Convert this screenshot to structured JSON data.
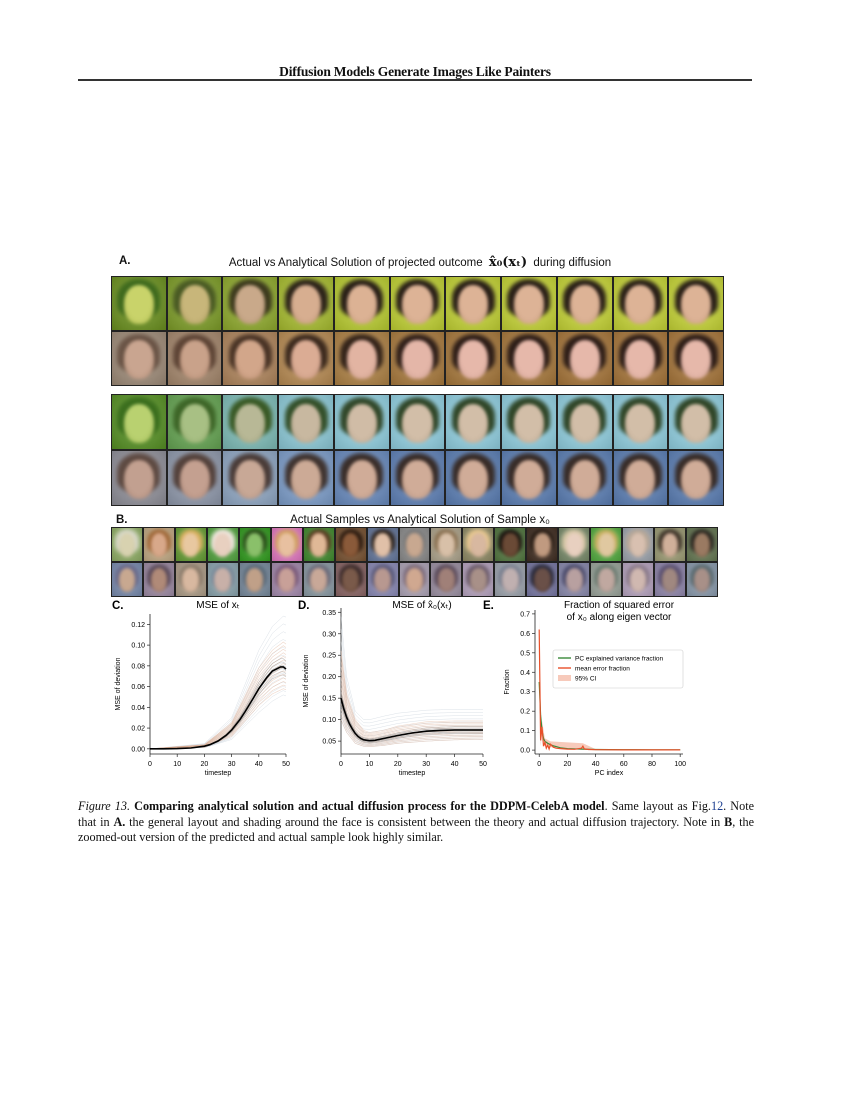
{
  "page": {
    "running_head": "Diffusion Models Generate Images Like Painters"
  },
  "panel_a": {
    "letter": "A.",
    "title_prefix": "Actual vs Analytical Solution of projected outcome",
    "title_math": "x̂₀(xₜ)",
    "title_suffix": "during diffusion",
    "columns": 11,
    "groups": [
      {
        "name": "male-sample",
        "rows": [
          {
            "label": "actual",
            "bg": [
              "#6f8f2e",
              "#7f9a36",
              "#8ea53a",
              "#a3b53c",
              "#b2c23d",
              "#b8c63f",
              "#bac740",
              "#bcc841",
              "#bdc942",
              "#bdc942",
              "#bdc942"
            ],
            "face": [
              "#c9d36a",
              "#c8b67a",
              "#c9a98a",
              "#d7ae90",
              "#dcb294",
              "#ddb396",
              "#ddb396",
              "#ddb396",
              "#ddb396",
              "#ddb396",
              "#ddb396"
            ],
            "hair": [
              "#3f6a1e",
              "#4a5a24",
              "#3d3a1e",
              "#2d241a",
              "#2a2018",
              "#2a2018",
              "#2a2018",
              "#2a2018",
              "#2a2018",
              "#2a2018",
              "#2a2018"
            ]
          },
          {
            "label": "analytical",
            "bg": [
              "#9a8a7a",
              "#a08770",
              "#a98562",
              "#b08a5a",
              "#a8824e",
              "#a47c48",
              "#a27a46",
              "#a27a46",
              "#a27845",
              "#a27845",
              "#a27845"
            ],
            "face": [
              "#c9a590",
              "#c9a28a",
              "#d2a68a",
              "#dbac94",
              "#e2b4a2",
              "#e4b6a8",
              "#e6b8aa",
              "#e6b8aa",
              "#e6b8aa",
              "#e6b8aa",
              "#e6b8aa"
            ],
            "hair": [
              "#6a5446",
              "#5e4536",
              "#4a3426",
              "#3c2a1e",
              "#34241a",
              "#30201a",
              "#2e1e18",
              "#2e1e18",
              "#2e1e18",
              "#2e1e18",
              "#2e1e18"
            ]
          }
        ]
      },
      {
        "name": "female-sample",
        "rows": [
          {
            "label": "actual",
            "bg": [
              "#5d8f32",
              "#6aa05a",
              "#7fb4b0",
              "#8cc0cc",
              "#8fc4d2",
              "#90c5d4",
              "#90c5d4",
              "#90c5d4",
              "#90c5d4",
              "#90c5d4",
              "#90c5d4"
            ],
            "face": [
              "#b9d170",
              "#a8c084",
              "#b8b896",
              "#c8b8a0",
              "#d0bca6",
              "#d2bea8",
              "#d2bea8",
              "#d2bea8",
              "#d2bea8",
              "#d2bea8",
              "#d2bea8"
            ],
            "hair": [
              "#3b6e1e",
              "#3e6628",
              "#3a5a26",
              "#34502a",
              "#32482a",
              "#304628",
              "#304628",
              "#304628",
              "#304628",
              "#304628",
              "#304628"
            ]
          },
          {
            "label": "analytical",
            "bg": [
              "#8e8e96",
              "#8e96a6",
              "#8ea2ba",
              "#7e9ac0",
              "#6d8ab6",
              "#6582b0",
              "#6280ae",
              "#6280ae",
              "#6280ae",
              "#6280ae",
              "#6280ae"
            ],
            "face": [
              "#c2a090",
              "#c4a090",
              "#c8a896",
              "#ccaa96",
              "#d0ac98",
              "#d0ac98",
              "#d0ac98",
              "#d0ac98",
              "#d0ac98",
              "#d0ac98",
              "#d0ac98"
            ],
            "hair": [
              "#5e4a42",
              "#54423c",
              "#4a3c38",
              "#403430",
              "#3a2e2a",
              "#382c28",
              "#382c28",
              "#382c28",
              "#382c28",
              "#382c28",
              "#382c28"
            ]
          }
        ]
      }
    ]
  },
  "panel_b": {
    "letter": "B.",
    "title": "Actual Samples vs Analytical Solution of Sample x₀",
    "columns": 19,
    "actual": {
      "bg": [
        "#8ea86a",
        "#b8a484",
        "#6a9a40",
        "#5aa04a",
        "#3e9a2e",
        "#d47ab8",
        "#4a8a3a",
        "#7a5a3e",
        "#6a7a9a",
        "#8a8a8a",
        "#a8a08c",
        "#8e8a6a",
        "#5a7a4a",
        "#4a3a30",
        "#7a8a6e",
        "#5aa64a",
        "#9aa0a8",
        "#9a9a78",
        "#6a7a5a"
      ],
      "face": [
        "#d8d2b0",
        "#d8a88a",
        "#e8c8a0",
        "#e8d0c0",
        "#8ac06a",
        "#e8c0a0",
        "#e0b896",
        "#8a5a3a",
        "#e0c0a8",
        "#c8a890",
        "#d8c0a8",
        "#d8b8a0",
        "#6a4a36",
        "#c09a80",
        "#e8d0c0",
        "#e0c8a0",
        "#d8c0b0",
        "#d0b09a",
        "#9a7a62"
      ],
      "hair": [
        "#d8d8c8",
        "#a06838",
        "#d8b060",
        "#f0e8e0",
        "#2a4a1a",
        "#d0a060",
        "#5a3a22",
        "#2a1a10",
        "#2a2018",
        "#7a7a7a",
        "#8a7050",
        "#e8c890",
        "#1a1410",
        "#2a1e16",
        "#d8c8a8",
        "#c8b060",
        "#b8a898",
        "#3a3026",
        "#2a2620"
      ]
    },
    "analytical": {
      "bg": [
        "#7a8aa8",
        "#9a8aa0",
        "#a89a88",
        "#8aa0a8",
        "#7a8a9a",
        "#a08aa8",
        "#8a98a0",
        "#8a6a6a",
        "#8a8ab0",
        "#a8a0b0",
        "#9a90a0",
        "#b0a0b8",
        "#9aa0a8",
        "#7a7aa0",
        "#8a8aa8",
        "#98a098",
        "#b0a0b8",
        "#9088a8",
        "#8a98a8"
      ],
      "face": [
        "#c8a890",
        "#b08a78",
        "#d8b8a0",
        "#c8b0a8",
        "#c0a088",
        "#c8a098",
        "#c8a898",
        "#7a5a4a",
        "#b89890",
        "#d0a890",
        "#a08078",
        "#a89088",
        "#c0b0b0",
        "#6a5048",
        "#b8a0a0",
        "#c0a8a0",
        "#d0b8b0",
        "#a08880",
        "#a89088"
      ],
      "hair": [
        "#6a6a8a",
        "#5a4a5a",
        "#8a7a6a",
        "#7a8a9a",
        "#5a6a7a",
        "#7a5a7a",
        "#6a6a7a",
        "#3a2a2a",
        "#5a5a7a",
        "#7a6a7a",
        "#5a4a5a",
        "#6a5a6a",
        "#7a8090",
        "#2a2a3a",
        "#4a4a6a",
        "#6a7a70",
        "#8a7a8a",
        "#5a5070",
        "#5a6a70"
      ]
    }
  },
  "chart_data": [
    {
      "panel": "C.",
      "type": "line",
      "title": "MSE of xₜ",
      "xlabel": "timestep",
      "ylabel": "MSE of deviation",
      "xlim": [
        0,
        50
      ],
      "ylim": [
        -0.005,
        0.13
      ],
      "xticks": [
        0,
        10,
        20,
        30,
        40,
        50
      ],
      "yticks": [
        0.0,
        0.02,
        0.04,
        0.06,
        0.08,
        0.1,
        0.12
      ],
      "ytick_labels": [
        "0.00",
        "0.02",
        "0.04",
        "0.06",
        "0.08",
        "0.10",
        "0.12"
      ],
      "grid": false,
      "series": [
        {
          "name": "mean",
          "color": "#000000",
          "x": [
            0,
            5,
            10,
            15,
            20,
            22,
            25,
            28,
            30,
            33,
            35,
            38,
            40,
            43,
            45,
            48,
            49,
            50
          ],
          "y": [
            0,
            0,
            0.0002,
            0.0008,
            0.0025,
            0.004,
            0.0075,
            0.013,
            0.018,
            0.028,
            0.036,
            0.049,
            0.058,
            0.069,
            0.075,
            0.079,
            0.079,
            0.077
          ]
        },
        {
          "name": "upper-envelope",
          "color": "#d9a68a",
          "x": [
            0,
            20,
            30,
            40,
            45,
            49,
            50
          ],
          "y": [
            0,
            0.004,
            0.025,
            0.078,
            0.095,
            0.103,
            0.101
          ]
        },
        {
          "name": "lower-envelope",
          "color": "#d9a68a",
          "x": [
            0,
            20,
            30,
            40,
            45,
            49,
            50
          ],
          "y": [
            0,
            0.0015,
            0.012,
            0.042,
            0.053,
            0.058,
            0.057
          ]
        },
        {
          "name": "max-trace",
          "color": "#c8d2dc",
          "x": [
            0,
            20,
            30,
            40,
            45,
            49,
            50
          ],
          "y": [
            0,
            0.005,
            0.03,
            0.095,
            0.118,
            0.128,
            0.127
          ]
        },
        {
          "name": "min-trace",
          "color": "#c8d2dc",
          "x": [
            0,
            20,
            30,
            40,
            45,
            49,
            50
          ],
          "y": [
            0,
            0.001,
            0.009,
            0.035,
            0.046,
            0.052,
            0.051
          ]
        }
      ]
    },
    {
      "panel": "D.",
      "type": "line",
      "title": "MSE of x̂₀(xₜ)",
      "xlabel": "timestep",
      "ylabel": "MSE of deviation",
      "xlim": [
        0,
        50
      ],
      "ylim": [
        0.02,
        0.36
      ],
      "xticks": [
        0,
        10,
        20,
        30,
        40,
        50
      ],
      "yticks": [
        0.05,
        0.1,
        0.15,
        0.2,
        0.25,
        0.3,
        0.35
      ],
      "ytick_labels": [
        "0.05",
        "0.10",
        "0.15",
        "0.20",
        "0.25",
        "0.30",
        "0.35"
      ],
      "grid": false,
      "series": [
        {
          "name": "mean",
          "color": "#000000",
          "x": [
            0,
            1,
            2,
            3,
            4,
            5,
            6,
            7,
            8,
            10,
            12,
            15,
            20,
            25,
            30,
            35,
            40,
            45,
            50
          ],
          "y": [
            0.15,
            0.125,
            0.105,
            0.09,
            0.078,
            0.068,
            0.061,
            0.056,
            0.053,
            0.051,
            0.052,
            0.056,
            0.063,
            0.069,
            0.073,
            0.075,
            0.076,
            0.076,
            0.076
          ]
        },
        {
          "name": "upper-envelope",
          "color": "#d9a68a",
          "x": [
            0,
            2,
            5,
            8,
            10,
            15,
            20,
            30,
            40,
            50
          ],
          "y": [
            0.26,
            0.16,
            0.1,
            0.075,
            0.07,
            0.075,
            0.085,
            0.095,
            0.097,
            0.097
          ]
        },
        {
          "name": "lower-envelope",
          "color": "#d9a68a",
          "x": [
            0,
            2,
            5,
            8,
            10,
            15,
            20,
            30,
            40,
            50
          ],
          "y": [
            0.1,
            0.07,
            0.045,
            0.038,
            0.037,
            0.04,
            0.045,
            0.05,
            0.053,
            0.054
          ]
        },
        {
          "name": "max-trace",
          "color": "#c8d2dc",
          "x": [
            0,
            2,
            5,
            8,
            10,
            15,
            20,
            30,
            40,
            50
          ],
          "y": [
            0.34,
            0.2,
            0.12,
            0.1,
            0.1,
            0.108,
            0.115,
            0.122,
            0.124,
            0.124
          ]
        }
      ]
    },
    {
      "panel": "E.",
      "type": "line",
      "title": "Fraction of squared error",
      "title_line2": "of x₀ along eigen vector",
      "xlabel": "PC index",
      "ylabel": "Fraction",
      "xlim": [
        -3,
        102
      ],
      "ylim": [
        -0.02,
        0.72
      ],
      "xticks": [
        0,
        20,
        40,
        60,
        80,
        100
      ],
      "yticks": [
        0.0,
        0.1,
        0.2,
        0.3,
        0.4,
        0.5,
        0.6,
        0.7
      ],
      "ytick_labels": [
        "0.0",
        "0.1",
        "0.2",
        "0.3",
        "0.4",
        "0.5",
        "0.6",
        "0.7"
      ],
      "grid": false,
      "legend": {
        "position": "upper right",
        "entries": [
          "PC explained variance fraction",
          "mean error fraction",
          "95% CI"
        ]
      },
      "series": [
        {
          "name": "PC explained variance fraction",
          "color": "#3a8a3a",
          "x": [
            0,
            1,
            2,
            3,
            4,
            5,
            6,
            8,
            10,
            12,
            15,
            20,
            30,
            40,
            60,
            80,
            100
          ],
          "y": [
            0.35,
            0.18,
            0.1,
            0.06,
            0.045,
            0.04,
            0.035,
            0.028,
            0.022,
            0.018,
            0.012,
            0.008,
            0.005,
            0.003,
            0.002,
            0.001,
            0.001
          ]
        },
        {
          "name": "mean error fraction",
          "color": "#e8502a",
          "x": [
            0,
            1,
            2,
            3,
            4,
            5,
            6,
            7,
            8,
            10,
            12,
            15,
            20,
            25,
            30,
            31,
            32,
            35,
            40,
            60,
            80,
            100
          ],
          "y": [
            0.62,
            0.05,
            0.12,
            0.02,
            0.04,
            0.01,
            0.025,
            0.005,
            0.03,
            0.015,
            0.01,
            0.008,
            0.005,
            0.004,
            0.01,
            0.02,
            0.006,
            0.003,
            0.002,
            0.001,
            0.001,
            0.001
          ]
        },
        {
          "name": "95% CI",
          "color": "#f4b49e",
          "x": [
            0,
            1,
            2,
            4,
            8,
            31,
            40,
            100
          ],
          "y_upper": [
            0.69,
            0.12,
            0.15,
            0.06,
            0.045,
            0.035,
            0.005,
            0.002
          ],
          "y_lower": [
            0.55,
            0.02,
            0.08,
            0.02,
            0.015,
            0.008,
            0.0,
            0.0
          ]
        }
      ]
    }
  ],
  "caption": {
    "figure_label": "Figure 13.",
    "bold_title": "Comparing analytical solution and actual diffusion process for the DDPM-CelebA model",
    "text_1": ". Same layout as Fig.",
    "ref": "12",
    "text_2": ". Note that in ",
    "bold_a": "A.",
    "text_3": " the general layout and shading around the face is consistent between the theory and actual diffusion trajectory. Note in ",
    "bold_b": "B",
    "text_4": ", the zoomed-out version of the predicted and actual sample look highly similar."
  }
}
